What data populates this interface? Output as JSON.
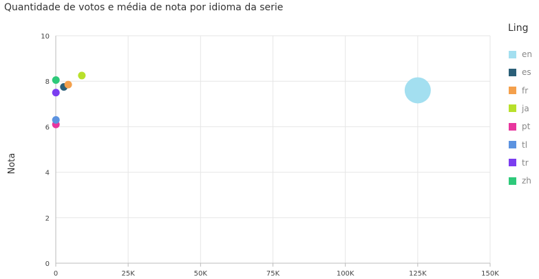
{
  "chart_data": {
    "type": "scatter",
    "title": "Quantidade de votos e média de nota por idioma da serie",
    "xlabel": "",
    "ylabel": "Nota",
    "xlim": [
      0,
      150000
    ],
    "ylim": [
      0,
      10
    ],
    "x_ticks": [
      0,
      25000,
      50000,
      75000,
      100000,
      125000,
      150000
    ],
    "x_tick_labels": [
      "0",
      "25K",
      "50K",
      "75K",
      "100K",
      "125K",
      "150K"
    ],
    "y_ticks": [
      0,
      2,
      4,
      6,
      8,
      10
    ],
    "y_tick_labels": [
      "0",
      "2",
      "4",
      "6",
      "8",
      "10"
    ],
    "grid": true,
    "legend_title": "Ling",
    "legend_position": "right",
    "series": [
      {
        "name": "en",
        "color": "#a3dff0",
        "x": 125000,
        "y": 7.6
      },
      {
        "name": "es",
        "color": "#2b5f78",
        "x": 2800,
        "y": 7.75
      },
      {
        "name": "fr",
        "color": "#f4a04c",
        "x": 4300,
        "y": 7.85
      },
      {
        "name": "ja",
        "color": "#b8e02b",
        "x": 9000,
        "y": 8.25
      },
      {
        "name": "pt",
        "color": "#e8369e",
        "x": 50,
        "y": 6.1
      },
      {
        "name": "tl",
        "color": "#5c93e0",
        "x": 50,
        "y": 6.3
      },
      {
        "name": "tr",
        "color": "#7b3df0",
        "x": 50,
        "y": 7.5
      },
      {
        "name": "zh",
        "color": "#2ec97a",
        "x": 50,
        "y": 8.05
      }
    ]
  }
}
